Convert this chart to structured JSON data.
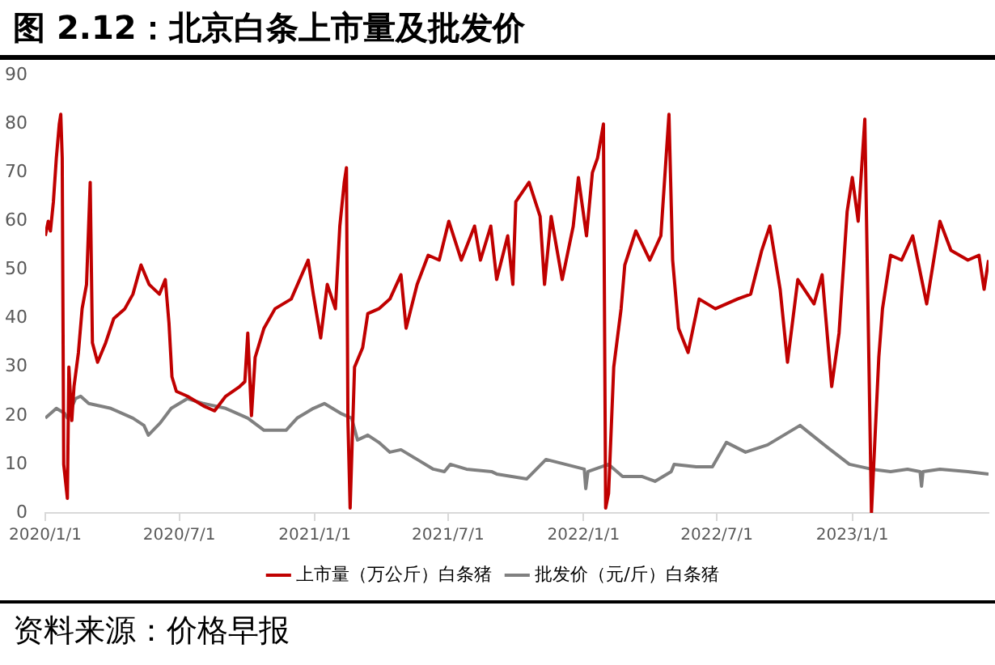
{
  "chart_data": {
    "type": "line",
    "title": "图 2.12：北京白条上市量及批发价",
    "xlim": [
      "2020-01-01",
      "2023-07-05"
    ],
    "xticks": [
      {
        "value": "2020-01-01",
        "label": "2020/1/1"
      },
      {
        "value": "2020-07-01",
        "label": "2020/7/1"
      },
      {
        "value": "2021-01-01",
        "label": "2021/1/1"
      },
      {
        "value": "2021-07-01",
        "label": "2021/7/1"
      },
      {
        "value": "2022-01-01",
        "label": "2022/1/1"
      },
      {
        "value": "2022-07-01",
        "label": "2022/7/1"
      },
      {
        "value": "2023-01-01",
        "label": "2023/1/1"
      }
    ],
    "ylim": [
      0,
      90
    ],
    "yticks": [
      0,
      10,
      20,
      30,
      40,
      50,
      60,
      70,
      80,
      90
    ],
    "grid": false,
    "legend": "bottom",
    "marker": "none",
    "line_style": "solid",
    "annotations": [
      "资料来源：价格早报"
    ],
    "series": [
      {
        "name": "上市量（万公斤）白条猪",
        "color": "#c00000",
        "x": [
          "2020-01-01",
          "2020-01-05",
          "2020-01-08",
          "2020-01-12",
          "2020-01-16",
          "2020-01-20",
          "2020-01-22",
          "2020-01-24",
          "2020-01-26",
          "2020-01-31",
          "2020-02-02",
          "2020-02-06",
          "2020-02-09",
          "2020-02-15",
          "2020-02-20",
          "2020-02-26",
          "2020-03-02",
          "2020-03-05",
          "2020-03-12",
          "2020-03-23",
          "2020-04-03",
          "2020-04-18",
          "2020-04-29",
          "2020-05-10",
          "2020-05-21",
          "2020-06-04",
          "2020-06-12",
          "2020-06-17",
          "2020-06-21",
          "2020-06-27",
          "2020-07-12",
          "2020-08-03",
          "2020-08-18",
          "2020-09-02",
          "2020-09-21",
          "2020-09-28",
          "2020-10-02",
          "2020-10-07",
          "2020-10-12",
          "2020-10-24",
          "2020-11-08",
          "2020-11-30",
          "2020-12-23",
          "2020-12-30",
          "2021-01-09",
          "2021-01-18",
          "2021-01-29",
          "2021-02-04",
          "2021-02-10",
          "2021-02-13",
          "2021-02-15",
          "2021-02-18",
          "2021-02-24",
          "2021-03-07",
          "2021-03-14",
          "2021-03-29",
          "2021-04-13",
          "2021-04-28",
          "2021-05-05",
          "2021-05-20",
          "2021-06-04",
          "2021-06-19",
          "2021-07-02",
          "2021-07-19",
          "2021-08-06",
          "2021-08-14",
          "2021-08-28",
          "2021-09-05",
          "2021-09-20",
          "2021-09-27",
          "2021-10-01",
          "2021-10-19",
          "2021-11-03",
          "2021-11-09",
          "2021-11-18",
          "2021-12-03",
          "2021-12-18",
          "2021-12-25",
          "2022-01-05",
          "2022-01-13",
          "2022-01-20",
          "2022-01-28",
          "2022-01-31",
          "2022-02-04",
          "2022-02-11",
          "2022-02-21",
          "2022-02-26",
          "2022-03-13",
          "2022-04-01",
          "2022-04-16",
          "2022-04-27",
          "2022-05-02",
          "2022-05-10",
          "2022-05-23",
          "2022-06-07",
          "2022-06-29",
          "2022-07-29",
          "2022-08-16",
          "2022-08-31",
          "2022-09-11",
          "2022-09-25",
          "2022-10-05",
          "2022-10-19",
          "2022-11-10",
          "2022-11-21",
          "2022-12-04",
          "2022-12-14",
          "2022-12-25",
          "2023-01-01",
          "2023-01-09",
          "2023-01-18",
          "2023-01-27",
          "2023-02-06",
          "2023-02-11",
          "2023-02-22",
          "2023-03-09",
          "2023-03-24",
          "2023-04-12",
          "2023-04-30",
          "2023-05-15",
          "2023-06-07",
          "2023-06-22",
          "2023-06-29",
          "2023-07-05"
        ],
        "values": [
          57,
          60,
          58,
          64,
          73,
          80,
          82,
          73,
          10,
          3,
          30,
          19,
          26,
          33,
          42,
          47,
          68,
          35,
          31,
          35,
          40,
          42,
          45,
          51,
          47,
          45,
          48,
          39,
          28,
          25,
          24,
          22,
          21,
          24,
          26,
          27,
          37,
          20,
          32,
          38,
          42,
          44,
          52,
          45,
          36,
          47,
          42,
          59,
          68,
          71,
          19,
          1,
          30,
          34,
          41,
          42,
          44,
          49,
          38,
          47,
          53,
          52,
          60,
          52,
          59,
          52,
          59,
          48,
          57,
          47,
          64,
          68,
          61,
          47,
          61,
          48,
          59,
          69,
          57,
          70,
          73,
          80,
          1,
          4,
          30,
          42,
          51,
          58,
          52,
          57,
          82,
          52,
          38,
          33,
          44,
          42,
          44,
          45,
          54,
          59,
          46,
          31,
          48,
          43,
          49,
          26,
          37,
          62,
          69,
          60,
          81,
          0,
          32,
          42,
          53,
          52,
          57,
          43,
          60,
          54,
          52,
          53,
          46,
          52
        ]
      },
      {
        "name": "批发价（元/斤）白条猪",
        "color": "#808080",
        "x": [
          "2020-01-01",
          "2020-01-16",
          "2020-01-27",
          "2020-01-31",
          "2020-02-11",
          "2020-02-18",
          "2020-02-29",
          "2020-03-30",
          "2020-04-29",
          "2020-05-14",
          "2020-05-20",
          "2020-06-05",
          "2020-06-20",
          "2020-07-12",
          "2020-08-03",
          "2020-09-02",
          "2020-10-02",
          "2020-10-24",
          "2020-11-23",
          "2020-12-08",
          "2020-12-30",
          "2021-01-14",
          "2021-02-05",
          "2021-02-20",
          "2021-02-28",
          "2021-03-14",
          "2021-03-29",
          "2021-04-13",
          "2021-04-28",
          "2021-05-20",
          "2021-06-11",
          "2021-06-26",
          "2021-07-04",
          "2021-07-26",
          "2021-08-29",
          "2021-09-05",
          "2021-10-16",
          "2021-11-11",
          "2021-12-07",
          "2022-01-02",
          "2022-01-04",
          "2022-01-07",
          "2022-02-04",
          "2022-02-23",
          "2022-03-21",
          "2022-04-08",
          "2022-04-30",
          "2022-05-04",
          "2022-06-03",
          "2022-06-25",
          "2022-07-14",
          "2022-08-09",
          "2022-09-08",
          "2022-10-22",
          "2022-11-28",
          "2022-12-28",
          "2023-01-27",
          "2023-02-22",
          "2023-03-17",
          "2023-04-03",
          "2023-04-05",
          "2023-04-07",
          "2023-04-30",
          "2023-06-07",
          "2023-07-05"
        ],
        "values": [
          19.5,
          21.5,
          20.5,
          19.5,
          23.5,
          24,
          22.5,
          21.5,
          19.5,
          18,
          16,
          18.5,
          21.5,
          23.5,
          22.5,
          21.5,
          19.5,
          17,
          17,
          19.5,
          21.5,
          22.5,
          20.5,
          19.5,
          15,
          16,
          14.5,
          12.5,
          13,
          11,
          9,
          8.5,
          10,
          9,
          8.5,
          8,
          7,
          11,
          10,
          9,
          5,
          8.5,
          10,
          7.5,
          7.5,
          6.5,
          8.5,
          10,
          9.5,
          9.5,
          14.5,
          12.5,
          14,
          18,
          13.5,
          10,
          9,
          8.5,
          9,
          8.5,
          5.5,
          8.5,
          9,
          8.5,
          8
        ]
      }
    ]
  }
}
